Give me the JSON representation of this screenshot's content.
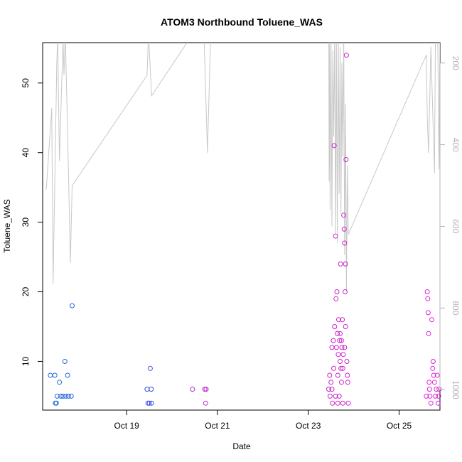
{
  "chart_data": {
    "type": "scatter",
    "title": "ATOM3 Northbound Toluene_WAS",
    "xlabel": "Date",
    "ylabel": "Toluene_WAS",
    "x_axis": {
      "unit": "days since 2017-10-17 00:00 (Oct 17 = 0)",
      "range": [
        0.15,
        8.9
      ],
      "ticks": [
        {
          "value": 2,
          "label": "Oct 19"
        },
        {
          "value": 4,
          "label": "Oct 21"
        },
        {
          "value": 6,
          "label": "Oct 23"
        },
        {
          "value": 8,
          "label": "Oct 25"
        }
      ]
    },
    "y_axis": {
      "range": [
        3.0,
        55.8
      ],
      "ticks": [
        10,
        20,
        30,
        40,
        50
      ]
    },
    "y2_axis": {
      "label": "",
      "range": [
        1050,
        150
      ],
      "reversed": true,
      "ticks": [
        200,
        400,
        600,
        800,
        1000
      ],
      "color": "#b4b4b4"
    },
    "grid": false,
    "legend": "none",
    "colors": {
      "early": "#1e62e0",
      "mid": "#5a3ae0",
      "late": "#d21ed2",
      "altitude_line": "#c8c8c8"
    },
    "points": [
      [
        0.32,
        8,
        "#2266dd"
      ],
      [
        0.42,
        8,
        "#2266dd"
      ],
      [
        0.43,
        4,
        "#2266dd"
      ],
      [
        0.45,
        4,
        "#2266dd"
      ],
      [
        0.47,
        5,
        "#2266dd"
      ],
      [
        0.52,
        7,
        "#2266dd"
      ],
      [
        0.55,
        5,
        "#2266dd"
      ],
      [
        0.6,
        5,
        "#2266dd"
      ],
      [
        0.64,
        10,
        "#2266dd"
      ],
      [
        0.66,
        5,
        "#2266dd"
      ],
      [
        0.7,
        8,
        "#2266dd"
      ],
      [
        0.72,
        5,
        "#2266dd"
      ],
      [
        0.78,
        5,
        "#2266dd"
      ],
      [
        0.8,
        18,
        "#2266dd"
      ],
      [
        2.45,
        6,
        "#3a4de0"
      ],
      [
        2.47,
        4,
        "#3a4de0"
      ],
      [
        2.5,
        4,
        "#3a4de0"
      ],
      [
        2.52,
        9,
        "#3a4de0"
      ],
      [
        2.54,
        6,
        "#3a4de0"
      ],
      [
        2.55,
        4,
        "#3a4de0"
      ],
      [
        3.45,
        6,
        "#c02ad4"
      ],
      [
        3.72,
        6,
        "#c02ad4"
      ],
      [
        3.74,
        4,
        "#c02ad4"
      ],
      [
        3.75,
        6,
        "#c02ad4"
      ],
      [
        6.45,
        6,
        "#cc22cc"
      ],
      [
        6.47,
        8,
        "#cc22cc"
      ],
      [
        6.48,
        5,
        "#cc22cc"
      ],
      [
        6.5,
        7,
        "#cc22cc"
      ],
      [
        6.52,
        12,
        "#cc22cc"
      ],
      [
        6.53,
        4,
        "#cc22cc"
      ],
      [
        6.55,
        13,
        "#cc22cc"
      ],
      [
        6.56,
        9,
        "#cc22cc"
      ],
      [
        6.57,
        41,
        "#cc22cc"
      ],
      [
        6.58,
        15,
        "#cc22cc"
      ],
      [
        6.6,
        28,
        "#cc22cc"
      ],
      [
        6.61,
        19,
        "#cc22cc"
      ],
      [
        6.62,
        12,
        "#cc22cc"
      ],
      [
        6.63,
        20,
        "#cc22cc"
      ],
      [
        6.64,
        14,
        "#cc22cc"
      ],
      [
        6.65,
        8,
        "#cc22cc"
      ],
      [
        6.66,
        11,
        "#cc22cc"
      ],
      [
        6.67,
        16,
        "#cc22cc"
      ],
      [
        6.68,
        5,
        "#cc22cc"
      ],
      [
        6.69,
        13,
        "#cc22cc"
      ],
      [
        6.7,
        10,
        "#cc22cc"
      ],
      [
        6.71,
        24,
        "#cc22cc"
      ],
      [
        6.72,
        9,
        "#cc22cc"
      ],
      [
        6.73,
        7,
        "#cc22cc"
      ],
      [
        6.74,
        12,
        "#cc22cc"
      ],
      [
        6.75,
        16,
        "#cc22cc"
      ],
      [
        6.76,
        4,
        "#cc22cc"
      ],
      [
        6.77,
        11,
        "#cc22cc"
      ],
      [
        6.78,
        31,
        "#cc22cc"
      ],
      [
        6.79,
        29,
        "#cc22cc"
      ],
      [
        6.8,
        27,
        "#cc22cc"
      ],
      [
        6.81,
        20,
        "#cc22cc"
      ],
      [
        6.82,
        24,
        "#cc22cc"
      ],
      [
        6.83,
        39,
        "#cc22cc"
      ],
      [
        6.84,
        54,
        "#cc22cc"
      ],
      [
        6.85,
        10,
        "#cc22cc"
      ],
      [
        6.86,
        8,
        "#cc22cc"
      ],
      [
        6.87,
        7,
        "#cc22cc"
      ],
      [
        6.88,
        4,
        "#cc22cc"
      ],
      [
        6.52,
        6,
        "#cc22cc"
      ],
      [
        6.6,
        5,
        "#cc22cc"
      ],
      [
        6.65,
        4,
        "#cc22cc"
      ],
      [
        6.7,
        14,
        "#cc22cc"
      ],
      [
        6.73,
        13,
        "#cc22cc"
      ],
      [
        6.76,
        9,
        "#cc22cc"
      ],
      [
        6.8,
        12,
        "#cc22cc"
      ],
      [
        6.82,
        15,
        "#cc22cc"
      ],
      [
        8.6,
        5,
        "#dd22dd"
      ],
      [
        8.62,
        20,
        "#dd22dd"
      ],
      [
        8.63,
        19,
        "#dd22dd"
      ],
      [
        8.64,
        17,
        "#dd22dd"
      ],
      [
        8.65,
        14,
        "#dd22dd"
      ],
      [
        8.66,
        7,
        "#dd22dd"
      ],
      [
        8.67,
        6,
        "#dd22dd"
      ],
      [
        8.68,
        5,
        "#dd22dd"
      ],
      [
        8.7,
        4,
        "#dd22dd"
      ],
      [
        8.72,
        16,
        "#dd22dd"
      ],
      [
        8.74,
        9,
        "#dd22dd"
      ],
      [
        8.75,
        10,
        "#dd22dd"
      ],
      [
        8.76,
        8,
        "#dd22dd"
      ],
      [
        8.78,
        7,
        "#dd22dd"
      ],
      [
        8.8,
        5,
        "#dd22dd"
      ],
      [
        8.82,
        6,
        "#dd22dd"
      ],
      [
        8.84,
        8,
        "#dd22dd"
      ],
      [
        8.86,
        4,
        "#dd22dd"
      ],
      [
        8.87,
        5,
        "#dd22dd"
      ],
      [
        8.88,
        6,
        "#dd22dd"
      ]
    ],
    "altitude_line": [
      [
        0.23,
        510
      ],
      [
        0.35,
        310
      ],
      [
        0.38,
        740
      ],
      [
        0.46,
        210
      ],
      [
        0.48,
        130
      ],
      [
        0.52,
        440
      ],
      [
        0.6,
        140
      ],
      [
        0.62,
        230
      ],
      [
        0.65,
        130
      ],
      [
        0.72,
        470
      ],
      [
        0.76,
        690
      ],
      [
        0.8,
        500
      ],
      [
        2.45,
        230
      ],
      [
        2.48,
        130
      ],
      [
        2.55,
        280
      ],
      [
        3.45,
        130
      ],
      [
        3.55,
        110
      ],
      [
        3.7,
        120
      ],
      [
        3.78,
        420
      ],
      [
        3.85,
        130
      ],
      [
        6.45,
        80
      ],
      [
        6.46,
        490
      ],
      [
        6.47,
        140
      ],
      [
        6.48,
        560
      ],
      [
        6.5,
        150
      ],
      [
        6.52,
        600
      ],
      [
        6.54,
        170
      ],
      [
        6.56,
        380
      ],
      [
        6.58,
        120
      ],
      [
        6.6,
        620
      ],
      [
        6.62,
        150
      ],
      [
        6.64,
        640
      ],
      [
        6.66,
        130
      ],
      [
        6.68,
        520
      ],
      [
        6.7,
        160
      ],
      [
        6.72,
        570
      ],
      [
        6.74,
        200
      ],
      [
        6.76,
        430
      ],
      [
        6.78,
        120
      ],
      [
        6.8,
        670
      ],
      [
        6.82,
        300
      ],
      [
        6.84,
        760
      ],
      [
        6.86,
        450
      ],
      [
        6.88,
        620
      ],
      [
        8.6,
        180
      ],
      [
        8.62,
        330
      ],
      [
        8.65,
        420
      ],
      [
        8.7,
        160
      ],
      [
        8.78,
        470
      ],
      [
        8.8,
        130
      ],
      [
        8.85,
        130
      ],
      [
        8.88,
        460
      ],
      [
        8.9,
        130
      ]
    ]
  }
}
